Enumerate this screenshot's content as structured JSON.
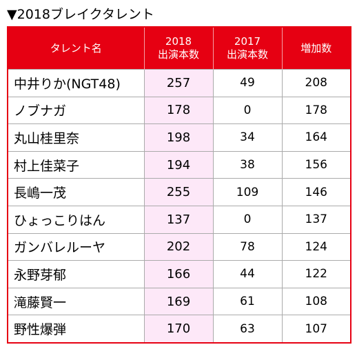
{
  "header": {
    "title": "▼2018ブレイクタレント"
  },
  "table": {
    "columns": [
      "タレント名",
      "2018\n出演本数",
      "2017\n出演本数",
      "増加数"
    ],
    "rows": [
      [
        "中井りか(NGT48)",
        257,
        49,
        208
      ],
      [
        "ノブナガ",
        178,
        0,
        178
      ],
      [
        "丸山桂里奈",
        198,
        34,
        164
      ],
      [
        "村上佳菜子",
        194,
        38,
        156
      ],
      [
        "長嶋一茂",
        255,
        109,
        146
      ],
      [
        "ひょっこりはん",
        137,
        0,
        137
      ],
      [
        "ガンバレルーヤ",
        202,
        78,
        124
      ],
      [
        "永野芽郁",
        166,
        44,
        122
      ],
      [
        "滝藤賢一",
        169,
        61,
        108
      ],
      [
        "野性爆弾",
        170,
        63,
        107
      ]
    ]
  }
}
